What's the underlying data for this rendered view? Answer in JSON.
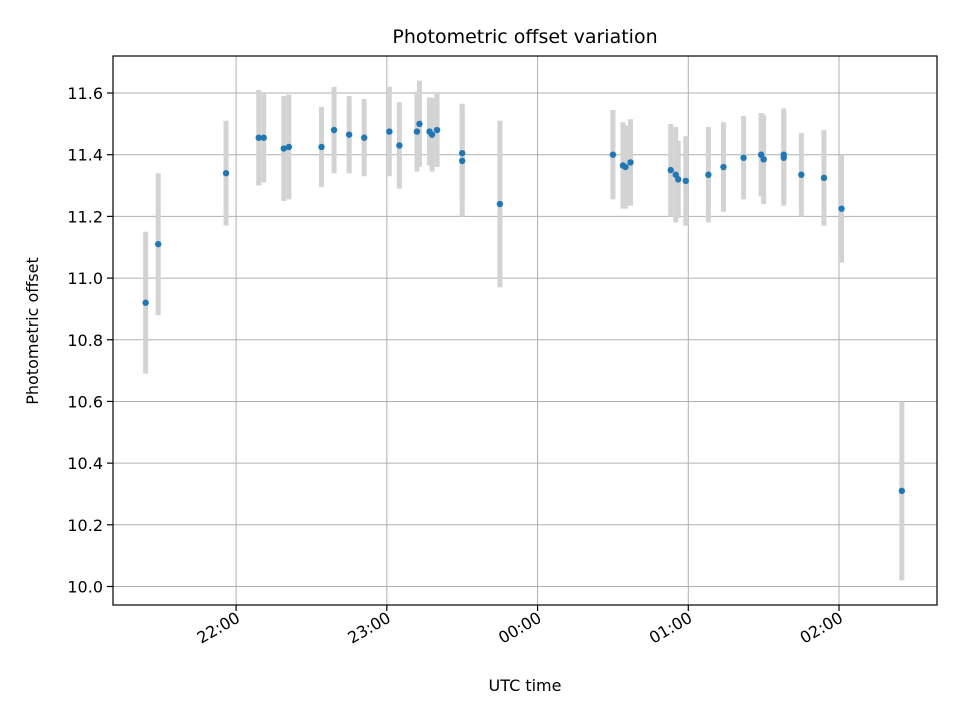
{
  "chart_data": {
    "type": "scatter",
    "title": "Photometric offset variation",
    "xlabel": "UTC time",
    "ylabel": "Photometric offset",
    "ylim": [
      9.94,
      11.72
    ],
    "xlim": [
      "21:11",
      "02:39"
    ],
    "grid": true,
    "error_bars": true,
    "x_ticks": [
      "22:00",
      "23:00",
      "00:00",
      "01:00",
      "02:00"
    ],
    "y_ticks": [
      "10.0",
      "10.2",
      "10.4",
      "10.6",
      "10.8",
      "11.0",
      "11.2",
      "11.4",
      "11.6"
    ],
    "points": [
      {
        "t": "21:24",
        "y": 10.92,
        "err": 0.23
      },
      {
        "t": "21:29",
        "y": 11.11,
        "err": 0.23
      },
      {
        "t": "21:56",
        "y": 11.34,
        "err": 0.17
      },
      {
        "t": "22:09",
        "y": 11.455,
        "err": 0.155
      },
      {
        "t": "22:11",
        "y": 11.455,
        "err": 0.145
      },
      {
        "t": "22:19",
        "y": 11.42,
        "err": 0.17
      },
      {
        "t": "22:21",
        "y": 11.425,
        "err": 0.17
      },
      {
        "t": "22:34",
        "y": 11.425,
        "err": 0.13
      },
      {
        "t": "22:39",
        "y": 11.48,
        "err": 0.14
      },
      {
        "t": "22:45",
        "y": 11.465,
        "err": 0.125
      },
      {
        "t": "22:51",
        "y": 11.455,
        "err": 0.125
      },
      {
        "t": "23:01",
        "y": 11.475,
        "err": 0.145
      },
      {
        "t": "23:05",
        "y": 11.43,
        "err": 0.14
      },
      {
        "t": "23:12",
        "y": 11.475,
        "err": 0.13
      },
      {
        "t": "23:13",
        "y": 11.5,
        "err": 0.14
      },
      {
        "t": "23:17",
        "y": 11.475,
        "err": 0.11
      },
      {
        "t": "23:18",
        "y": 11.465,
        "err": 0.12
      },
      {
        "t": "23:20",
        "y": 11.48,
        "err": 0.12
      },
      {
        "t": "23:30",
        "y": 11.405,
        "err": 0.16
      },
      {
        "t": "23:30",
        "y": 11.38,
        "err": 0.18
      },
      {
        "t": "23:45",
        "y": 11.24,
        "err": 0.27
      },
      {
        "t": "00:30",
        "y": 11.4,
        "err": 0.145
      },
      {
        "t": "00:34",
        "y": 11.365,
        "err": 0.14
      },
      {
        "t": "00:35",
        "y": 11.36,
        "err": 0.135
      },
      {
        "t": "00:37",
        "y": 11.375,
        "err": 0.14
      },
      {
        "t": "00:53",
        "y": 11.35,
        "err": 0.15
      },
      {
        "t": "00:55",
        "y": 11.335,
        "err": 0.155
      },
      {
        "t": "00:56",
        "y": 11.32,
        "err": 0.125
      },
      {
        "t": "00:59",
        "y": 11.315,
        "err": 0.145
      },
      {
        "t": "01:08",
        "y": 11.335,
        "err": 0.155
      },
      {
        "t": "01:14",
        "y": 11.36,
        "err": 0.145
      },
      {
        "t": "01:22",
        "y": 11.39,
        "err": 0.135
      },
      {
        "t": "01:29",
        "y": 11.4,
        "err": 0.135
      },
      {
        "t": "01:30",
        "y": 11.385,
        "err": 0.145
      },
      {
        "t": "01:38",
        "y": 11.4,
        "err": 0.15
      },
      {
        "t": "01:38",
        "y": 11.39,
        "err": 0.155
      },
      {
        "t": "01:45",
        "y": 11.335,
        "err": 0.135
      },
      {
        "t": "01:54",
        "y": 11.325,
        "err": 0.155
      },
      {
        "t": "02:01",
        "y": 11.225,
        "err": 0.175
      },
      {
        "t": "02:25",
        "y": 10.31,
        "err": 0.29
      }
    ],
    "colors": {
      "marker": "#1f77b4",
      "error_bar": "#d3d3d3",
      "grid": "#b0b0b0",
      "axis": "#000000"
    }
  }
}
